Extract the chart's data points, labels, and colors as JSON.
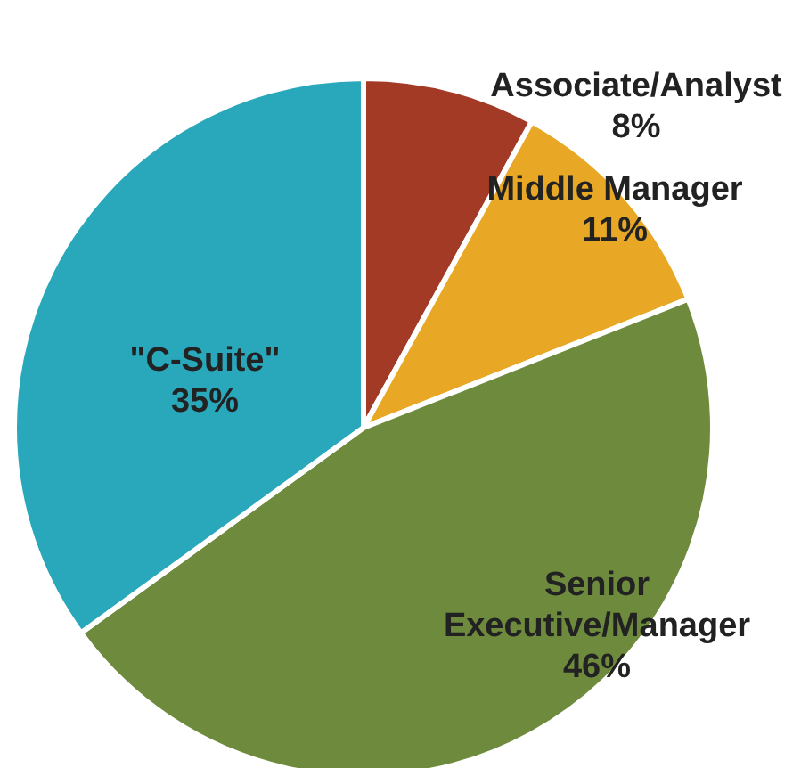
{
  "chart_data": {
    "type": "pie",
    "categories": [
      "Associate/Analyst",
      "Middle Manager",
      "Senior\nExecutive/Manager",
      "\"C-Suite\""
    ],
    "values": [
      8,
      11,
      46,
      35
    ],
    "value_labels": [
      "8%",
      "11%",
      "46%",
      "35%"
    ],
    "colors": [
      "#a33a26",
      "#e8a825",
      "#6e8b3d",
      "#2aa8bb"
    ],
    "legend": false
  }
}
